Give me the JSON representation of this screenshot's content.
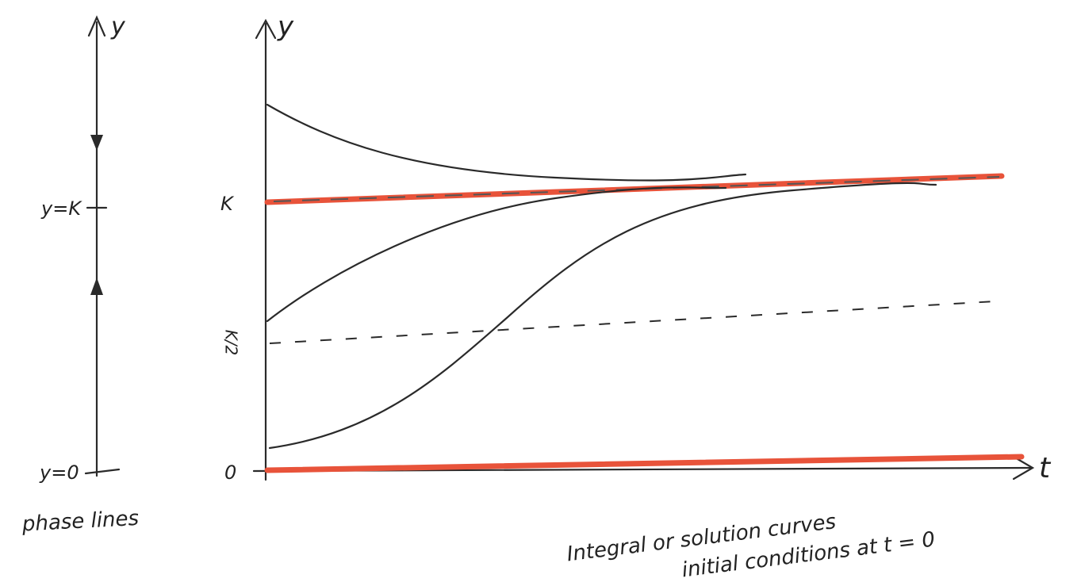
{
  "left_axis_label": "y",
  "phase_line_labels": [
    "y=K",
    "y=0"
  ],
  "phase_caption": "phase lines",
  "right_axis": {
    "y_label": "y",
    "t_label": "t",
    "ticks": [
      "K",
      "K/2",
      "0"
    ]
  },
  "caption": [
    "Integral or solution curves",
    "initial conditions at t = 0"
  ]
}
